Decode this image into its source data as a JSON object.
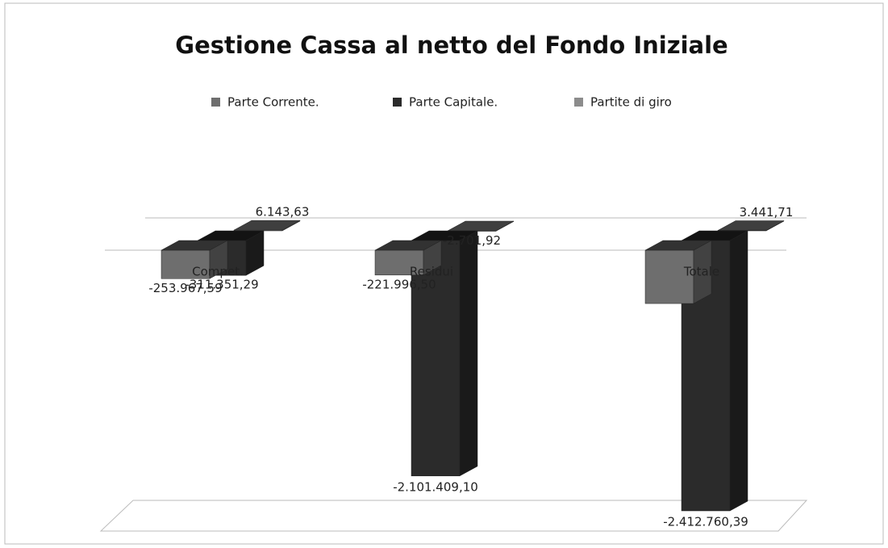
{
  "chart_data": {
    "type": "bar3d",
    "title": "Gestione Cassa al netto del Fondo Iniziale",
    "categories": [
      "Compet.",
      "Residui",
      "Totale"
    ],
    "series": [
      {
        "name": "Parte Corrente.",
        "color": "#6e6e6e",
        "values": [
          -253967.59,
          -221996.5,
          -475964.09
        ],
        "value_labels": [
          "-253.967,59",
          "-221.996,50",
          null
        ]
      },
      {
        "name": "Parte Capitale.",
        "color": "#2b2b2b",
        "values": [
          -311351.29,
          -2101409.1,
          -2412760.39
        ],
        "value_labels": [
          "-311.351,29",
          "-2.101.409,10",
          "-2.412.760,39"
        ]
      },
      {
        "name": "Partite di giro",
        "color": "#8c8c8c",
        "values": [
          6143.63,
          -2701.92,
          3441.71
        ],
        "value_labels": [
          "6.143,63",
          "-2.701,92",
          "3.441,71"
        ]
      }
    ],
    "legend": "top"
  }
}
